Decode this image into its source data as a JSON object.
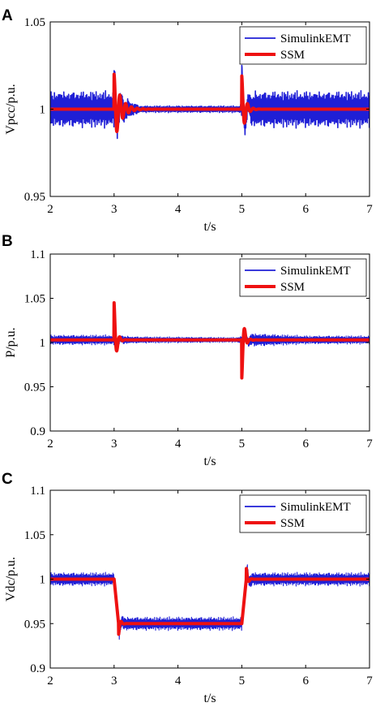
{
  "colors": {
    "emt": "#1f1fd6",
    "ssm": "#ee1111",
    "axis": "#000000"
  },
  "chart_data": [
    {
      "type": "line",
      "panel_label": "A",
      "xlabel": "t/s",
      "ylabel": "Vpcc/p.u.",
      "xlim": [
        2,
        7
      ],
      "ylim": [
        0.95,
        1.05
      ],
      "xticks": [
        "2",
        "3",
        "4",
        "5",
        "6",
        "7"
      ],
      "yticks": [
        "0.95",
        "1",
        "1.05"
      ],
      "xtick_values": [
        2,
        3,
        4,
        5,
        6,
        7
      ],
      "ytick_values": [
        0.95,
        1.0,
        1.05
      ],
      "legend_position": "top-right",
      "grid": false,
      "series": [
        {
          "name": "SimulinkEMT",
          "values": {
            "base": [
              [
                2,
                1.0
              ],
              [
                3,
                1.0
              ],
              [
                3.5,
                1.0
              ],
              [
                5,
                1.0
              ],
              [
                7,
                1.0
              ]
            ],
            "ripple": [
              [
                2,
                0.011
              ],
              [
                2.98,
                0.011
              ],
              [
                3.2,
                0.006
              ],
              [
                3.4,
                0.002
              ],
              [
                4.95,
                0.002
              ],
              [
                5.2,
                0.011
              ],
              [
                7,
                0.011
              ]
            ],
            "transients": [
              [
                3.0,
                0.019,
                0.07
              ],
              [
                5.0,
                0.024,
                0.06
              ]
            ]
          }
        },
        {
          "name": "SSM",
          "values": {
            "base": [
              [
                2,
                1.0
              ],
              [
                7,
                1.0
              ]
            ],
            "ripple": [
              [
                2,
                0
              ],
              [
                7,
                0
              ]
            ],
            "transients": [
              [
                3.0,
                0.02,
                0.1
              ],
              [
                5.0,
                0.019,
                0.05
              ]
            ]
          }
        }
      ]
    },
    {
      "type": "line",
      "panel_label": "B",
      "xlabel": "t/s",
      "ylabel": "P/p.u.",
      "xlim": [
        2,
        7
      ],
      "ylim": [
        0.9,
        1.1
      ],
      "xticks": [
        "2",
        "3",
        "4",
        "5",
        "6",
        "7"
      ],
      "yticks": [
        "0.9",
        "0.95",
        "1",
        "1.05",
        "1.1"
      ],
      "xtick_values": [
        2,
        3,
        4,
        5,
        6,
        7
      ],
      "ytick_values": [
        0.9,
        0.95,
        1.0,
        1.05,
        1.1
      ],
      "legend_position": "top-right",
      "grid": false,
      "series": [
        {
          "name": "SimulinkEMT",
          "values": {
            "base": [
              [
                2,
                1.003
              ],
              [
                7,
                1.003
              ]
            ],
            "ripple": [
              [
                2,
                0.006
              ],
              [
                2.98,
                0.006
              ],
              [
                3.3,
                0.004
              ],
              [
                4.9,
                0.003
              ],
              [
                5.2,
                0.008
              ],
              [
                6,
                0.005
              ],
              [
                7,
                0.005
              ]
            ],
            "transients": [
              [
                3.0,
                0.02,
                0.04
              ],
              [
                5.0,
                -0.024,
                0.05
              ]
            ]
          }
        },
        {
          "name": "SSM",
          "values": {
            "base": [
              [
                2,
                1.003
              ],
              [
                7,
                1.003
              ]
            ],
            "ripple": [
              [
                2,
                0
              ],
              [
                7,
                0
              ]
            ],
            "transients": [
              [
                3.0,
                0.042,
                0.035
              ],
              [
                5.0,
                -0.043,
                0.035
              ]
            ]
          }
        }
      ]
    },
    {
      "type": "line",
      "panel_label": "C",
      "xlabel": "t/s",
      "ylabel": "Vdc/p.u.",
      "xlim": [
        2,
        7
      ],
      "ylim": [
        0.9,
        1.1
      ],
      "xticks": [
        "2",
        "3",
        "4",
        "5",
        "6",
        "7"
      ],
      "yticks": [
        "0.9",
        "0.95",
        "1",
        "1.05",
        "1.1"
      ],
      "xtick_values": [
        2,
        3,
        4,
        5,
        6,
        7
      ],
      "ytick_values": [
        0.9,
        0.95,
        1.0,
        1.05,
        1.1
      ],
      "legend_position": "top-right",
      "grid": false,
      "series": [
        {
          "name": "SimulinkEMT",
          "values": {
            "base": [
              [
                2,
                1.0
              ],
              [
                3.0,
                1.0
              ],
              [
                3.08,
                0.95
              ],
              [
                5.0,
                0.95
              ],
              [
                5.08,
                1.0
              ],
              [
                7,
                1.0
              ]
            ],
            "ripple": [
              [
                2,
                0.008
              ],
              [
                7,
                0.008
              ]
            ],
            "transients": [
              [
                3.08,
                -0.012,
                0.03
              ],
              [
                5.08,
                0.016,
                0.03
              ]
            ]
          }
        },
        {
          "name": "SSM",
          "values": {
            "base": [
              [
                2,
                1.0
              ],
              [
                3.0,
                1.0
              ],
              [
                3.07,
                0.95
              ],
              [
                5.0,
                0.95
              ],
              [
                5.07,
                1.0
              ],
              [
                7,
                1.0
              ]
            ],
            "ripple": [
              [
                2,
                0
              ],
              [
                7,
                0
              ]
            ],
            "transients": [
              [
                3.07,
                -0.013,
                0.025
              ],
              [
                5.07,
                0.013,
                0.025
              ]
            ]
          }
        }
      ]
    }
  ]
}
